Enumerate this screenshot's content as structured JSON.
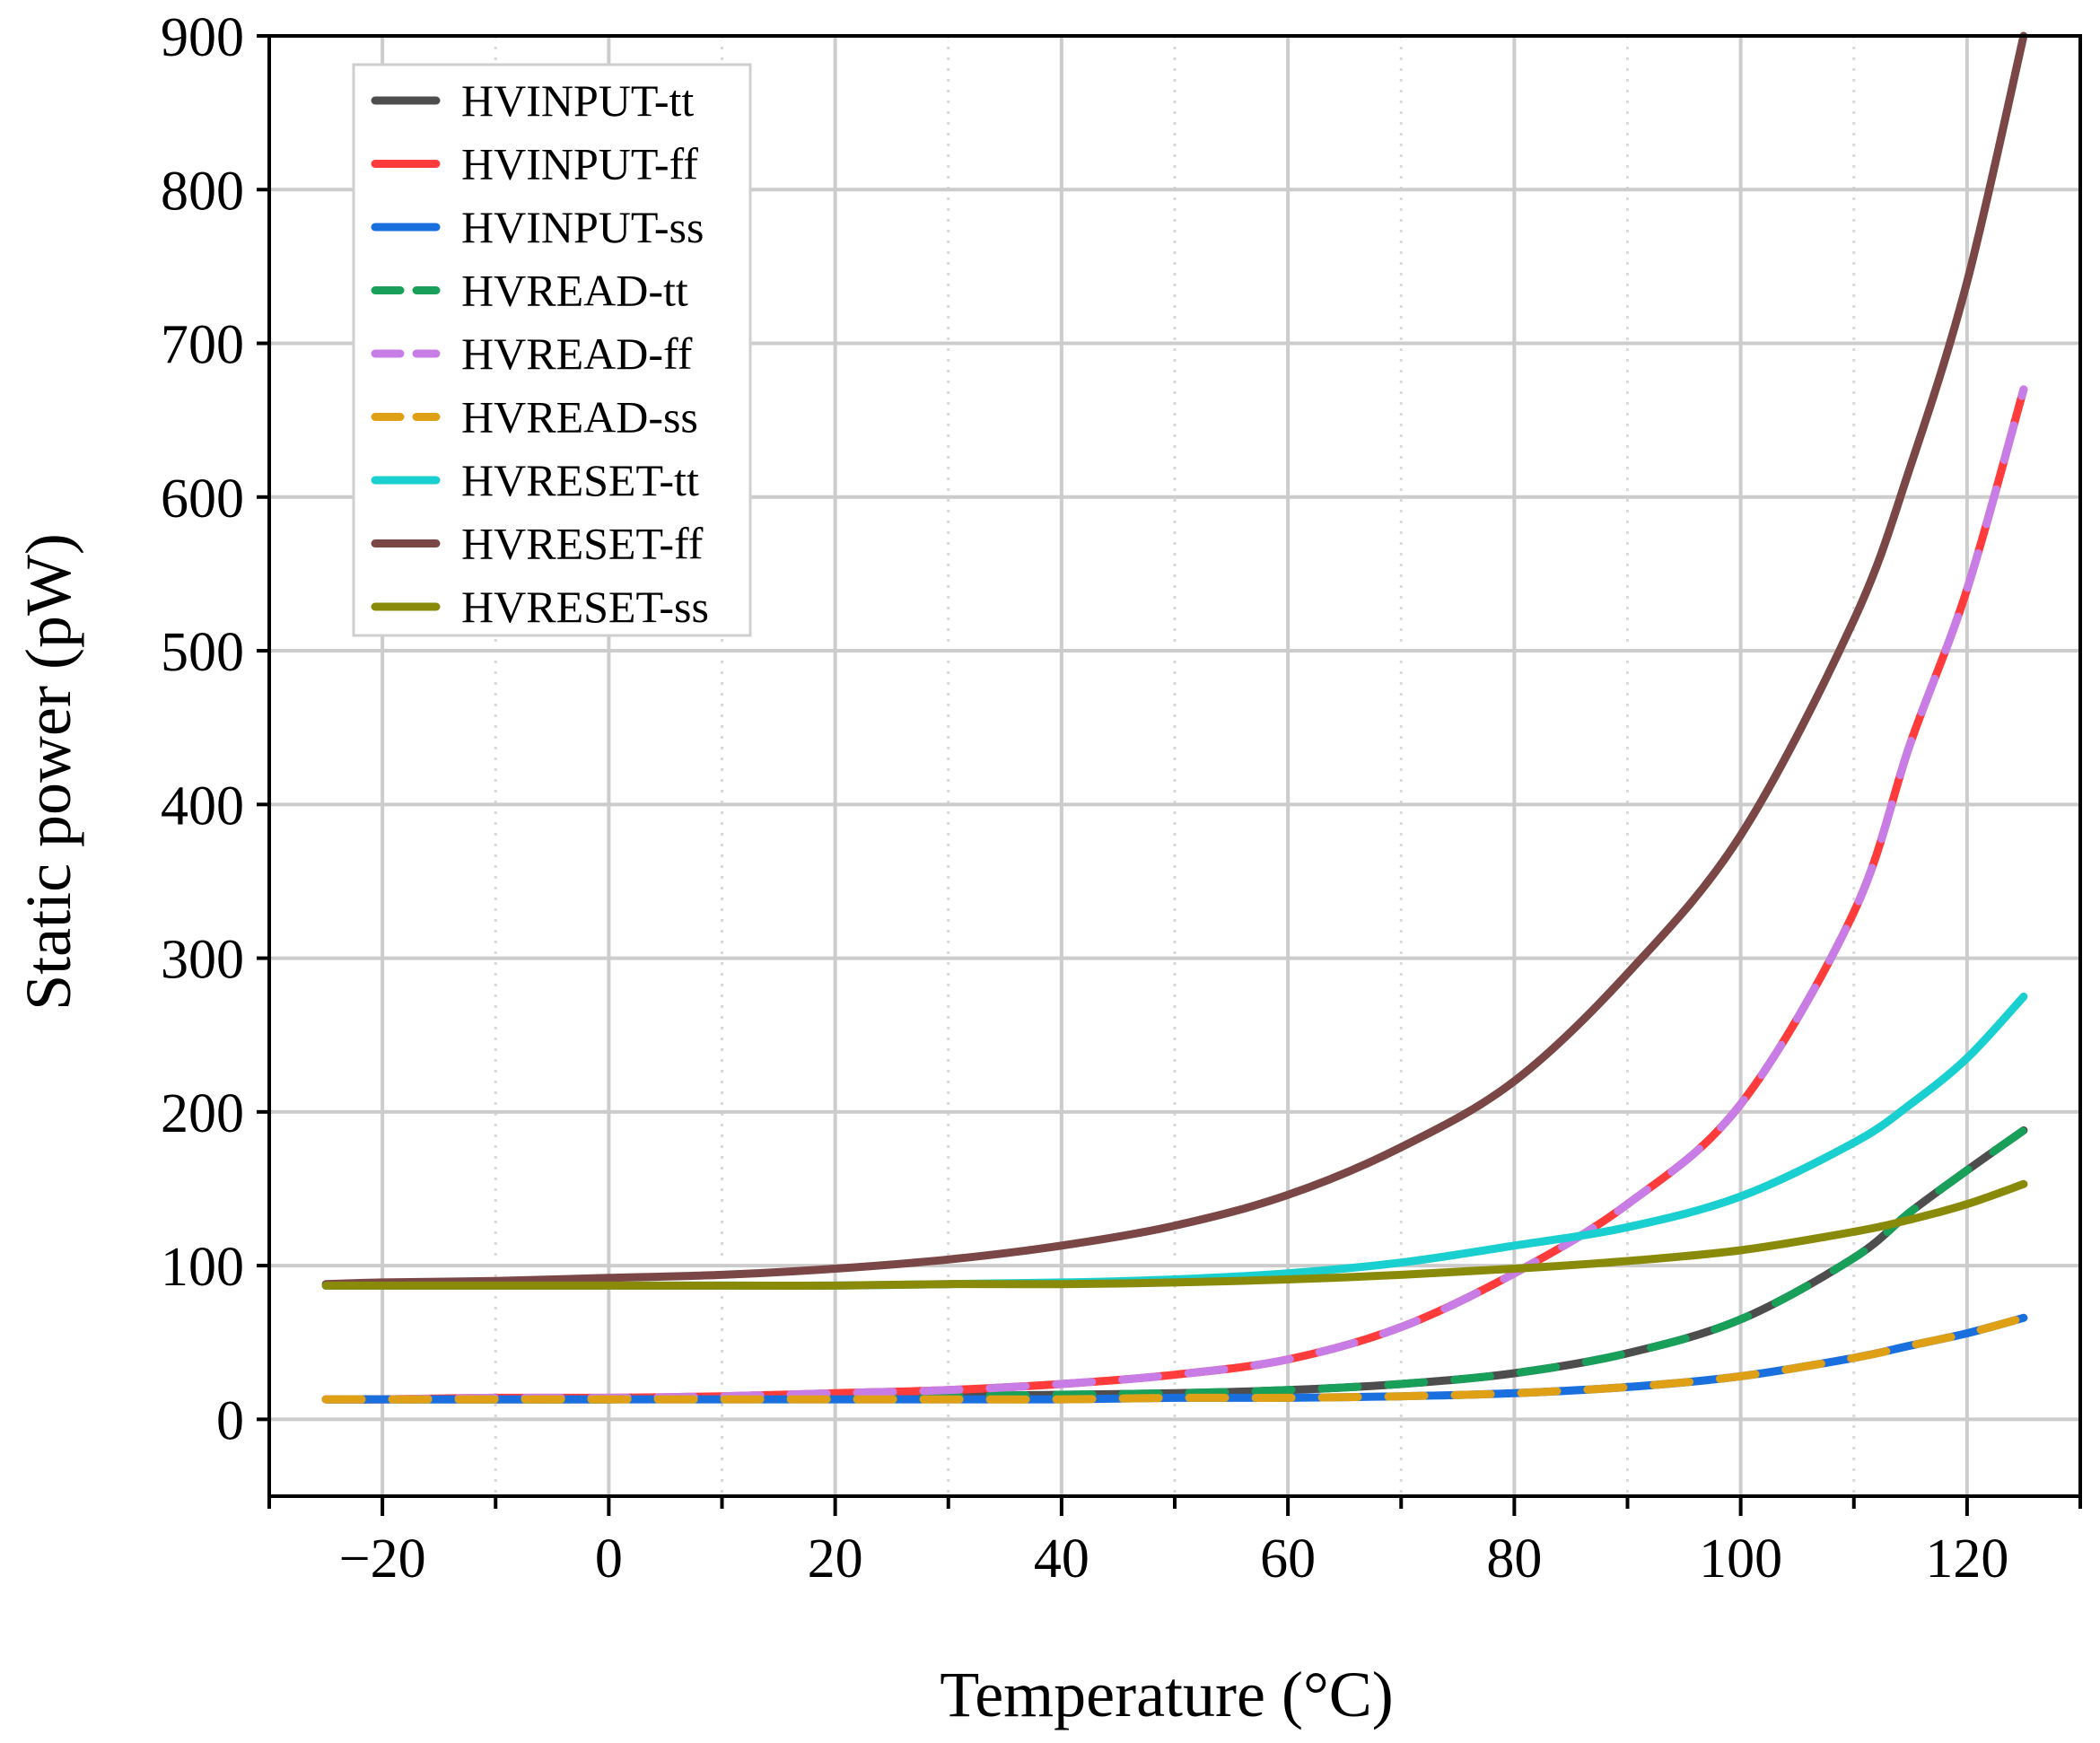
{
  "chart_data": {
    "type": "line",
    "title": "",
    "xlabel": "Temperature (°C)",
    "ylabel": "Static power (pW)",
    "xlim": [
      -30,
      130
    ],
    "ylim": [
      -50,
      900
    ],
    "xticks": [
      -20,
      0,
      20,
      40,
      60,
      80,
      100,
      120
    ],
    "xtick_labels": [
      "−20",
      "0",
      "20",
      "40",
      "60",
      "80",
      "100",
      "120"
    ],
    "yticks": [
      0,
      100,
      200,
      300,
      400,
      500,
      600,
      700,
      800,
      900
    ],
    "ytick_labels": [
      "0",
      "100",
      "200",
      "300",
      "400",
      "500",
      "600",
      "700",
      "800",
      "900"
    ],
    "grid": true,
    "legend_position": "top-left",
    "x": [
      -25,
      -20,
      -10,
      0,
      10,
      20,
      30,
      40,
      50,
      60,
      70,
      80,
      90,
      100,
      110,
      115,
      120,
      125
    ],
    "series": [
      {
        "name": "HVINPUT-tt",
        "color": "#4d4d4d",
        "style": "solid",
        "values": [
          13,
          13,
          13,
          13,
          14,
          14,
          15,
          16,
          17,
          19,
          23,
          30,
          43,
          65,
          105,
          135,
          162,
          188
        ]
      },
      {
        "name": "HVINPUT-ff",
        "color": "#ff3b3b",
        "style": "solid",
        "values": [
          13,
          13,
          14,
          14,
          15,
          17,
          19,
          23,
          29,
          39,
          60,
          95,
          140,
          205,
          330,
          440,
          540,
          670
        ]
      },
      {
        "name": "HVINPUT-ss",
        "color": "#1a6fdf",
        "style": "solid",
        "values": [
          13,
          13,
          13,
          13,
          13,
          13,
          13,
          13,
          14,
          14,
          15,
          17,
          21,
          28,
          40,
          48,
          56,
          66
        ]
      },
      {
        "name": "HVREAD-tt",
        "color": "#18a05a",
        "style": "dashed",
        "values": [
          13,
          13,
          13,
          13,
          14,
          14,
          15,
          16,
          17,
          19,
          23,
          30,
          43,
          65,
          105,
          135,
          162,
          188
        ]
      },
      {
        "name": "HVREAD-ff",
        "color": "#c87ce6",
        "style": "dashed",
        "values": [
          13,
          13,
          14,
          14,
          15,
          17,
          19,
          23,
          29,
          39,
          60,
          95,
          140,
          205,
          330,
          440,
          540,
          670
        ]
      },
      {
        "name": "HVREAD-ss",
        "color": "#e0a016",
        "style": "dashed",
        "values": [
          13,
          13,
          13,
          13,
          13,
          13,
          13,
          13,
          14,
          14,
          15,
          17,
          21,
          28,
          40,
          48,
          56,
          66
        ]
      },
      {
        "name": "HVRESET-tt",
        "color": "#19cfcf",
        "style": "solid",
        "values": [
          87,
          87,
          87,
          87,
          87,
          87,
          88,
          89,
          91,
          95,
          102,
          113,
          125,
          145,
          180,
          205,
          235,
          275
        ]
      },
      {
        "name": "HVRESET-ff",
        "color": "#7a4646",
        "style": "solid",
        "values": [
          88,
          89,
          90,
          92,
          94,
          98,
          104,
          113,
          126,
          146,
          177,
          220,
          290,
          380,
          520,
          620,
          740,
          900
        ]
      },
      {
        "name": "HVRESET-ss",
        "color": "#8a8a0a",
        "style": "solid",
        "values": [
          87,
          87,
          87,
          87,
          87,
          87,
          88,
          88,
          89,
          91,
          94,
          98,
          103,
          110,
          122,
          130,
          140,
          153
        ]
      }
    ]
  }
}
